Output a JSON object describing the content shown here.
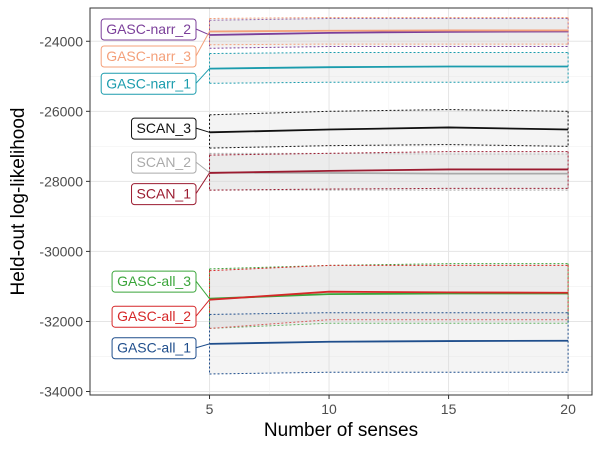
{
  "chart_data": {
    "type": "line",
    "xlabel": "Number of senses",
    "ylabel": "Held-out log-likelihood",
    "x_ticks": [
      "5",
      "10",
      "15",
      "20"
    ],
    "y_ticks": [
      "-24000",
      "-26000",
      "-28000",
      "-30000",
      "-32000",
      "-34000"
    ],
    "xlim": [
      0,
      21
    ],
    "ylim": [
      -34100,
      -23050
    ],
    "grid": true,
    "legend": "direct labels on left",
    "series": [
      {
        "name": "GASC-narr_2",
        "color": "#7b3f9a",
        "x": [
          5,
          10,
          15,
          20
        ],
        "values": [
          -23820,
          -23760,
          -23730,
          -23720
        ],
        "band_upper": [
          -23400,
          -23350,
          -23350,
          -23350
        ],
        "band_lower": [
          -24200,
          -24150,
          -24150,
          -24150
        ]
      },
      {
        "name": "GASC-narr_3",
        "color": "#f4a07a",
        "x": [
          5,
          10,
          15,
          20
        ],
        "values": [
          -23720,
          -23700,
          -23690,
          -23690
        ],
        "band_upper": [
          -23350,
          -23320,
          -23320,
          -23320
        ],
        "band_lower": [
          -24100,
          -24080,
          -24080,
          -24080
        ]
      },
      {
        "name": "GASC-narr_1",
        "color": "#1b9cad",
        "x": [
          5,
          10,
          15,
          20
        ],
        "values": [
          -24780,
          -24740,
          -24720,
          -24720
        ],
        "band_upper": [
          -24350,
          -24320,
          -24320,
          -24320
        ],
        "band_lower": [
          -25200,
          -25170,
          -25170,
          -25170
        ]
      },
      {
        "name": "SCAN_3",
        "color": "#111111",
        "x": [
          5,
          10,
          15,
          20
        ],
        "values": [
          -26600,
          -26520,
          -26460,
          -26520
        ],
        "band_upper": [
          -26100,
          -26000,
          -25950,
          -26000
        ],
        "band_lower": [
          -27050,
          -26980,
          -26950,
          -27000
        ]
      },
      {
        "name": "SCAN_2",
        "color": "#aaaaaa",
        "x": [
          5,
          10,
          15,
          20
        ],
        "values": [
          -27750,
          -27760,
          -27780,
          -27780
        ],
        "band_upper": [
          -27200,
          -27200,
          -27220,
          -27220
        ],
        "band_lower": [
          -28250,
          -28250,
          -28250,
          -28250
        ]
      },
      {
        "name": "SCAN_1",
        "color": "#9b1b30",
        "x": [
          5,
          10,
          15,
          20
        ],
        "values": [
          -27760,
          -27700,
          -27660,
          -27660
        ],
        "band_upper": [
          -27250,
          -27200,
          -27150,
          -27150
        ],
        "band_lower": [
          -28250,
          -28220,
          -28200,
          -28200
        ]
      },
      {
        "name": "GASC-all_3",
        "color": "#3aa53a",
        "x": [
          5,
          10,
          15,
          20
        ],
        "values": [
          -31350,
          -31220,
          -31200,
          -31200
        ],
        "band_upper": [
          -30500,
          -30400,
          -30350,
          -30350
        ],
        "band_lower": [
          -32200,
          -32050,
          -32050,
          -32050
        ]
      },
      {
        "name": "GASC-all_2",
        "color": "#d62728",
        "x": [
          5,
          10,
          15,
          20
        ],
        "values": [
          -31380,
          -31150,
          -31170,
          -31180
        ],
        "band_upper": [
          -30550,
          -30400,
          -30400,
          -30400
        ],
        "band_lower": [
          -32200,
          -31950,
          -31950,
          -31950
        ]
      },
      {
        "name": "GASC-all_1",
        "color": "#1f4e8c",
        "x": [
          5,
          10,
          15,
          20
        ],
        "values": [
          -32640,
          -32580,
          -32560,
          -32550
        ],
        "band_upper": [
          -31800,
          -31750,
          -31750,
          -31750
        ],
        "band_lower": [
          -33500,
          -33450,
          -33450,
          -33450
        ]
      }
    ],
    "labels": [
      {
        "series": "GASC-narr_2",
        "text": "GASC-narr_2",
        "y": -23650
      },
      {
        "series": "GASC-narr_3",
        "text": "GASC-narr_3",
        "y": -24420
      },
      {
        "series": "GASC-narr_1",
        "text": "GASC-narr_1",
        "y": -25200
      },
      {
        "series": "SCAN_3",
        "text": "SCAN_3",
        "y": -26480
      },
      {
        "series": "SCAN_2",
        "text": "SCAN_2",
        "y": -27450
      },
      {
        "series": "SCAN_1",
        "text": "SCAN_1",
        "y": -28350
      },
      {
        "series": "GASC-all_3",
        "text": "GASC-all_3",
        "y": -30850
      },
      {
        "series": "GASC-all_2",
        "text": "GASC-all_2",
        "y": -31850
      },
      {
        "series": "GASC-all_1",
        "text": "GASC-all_1",
        "y": -32750
      }
    ]
  }
}
